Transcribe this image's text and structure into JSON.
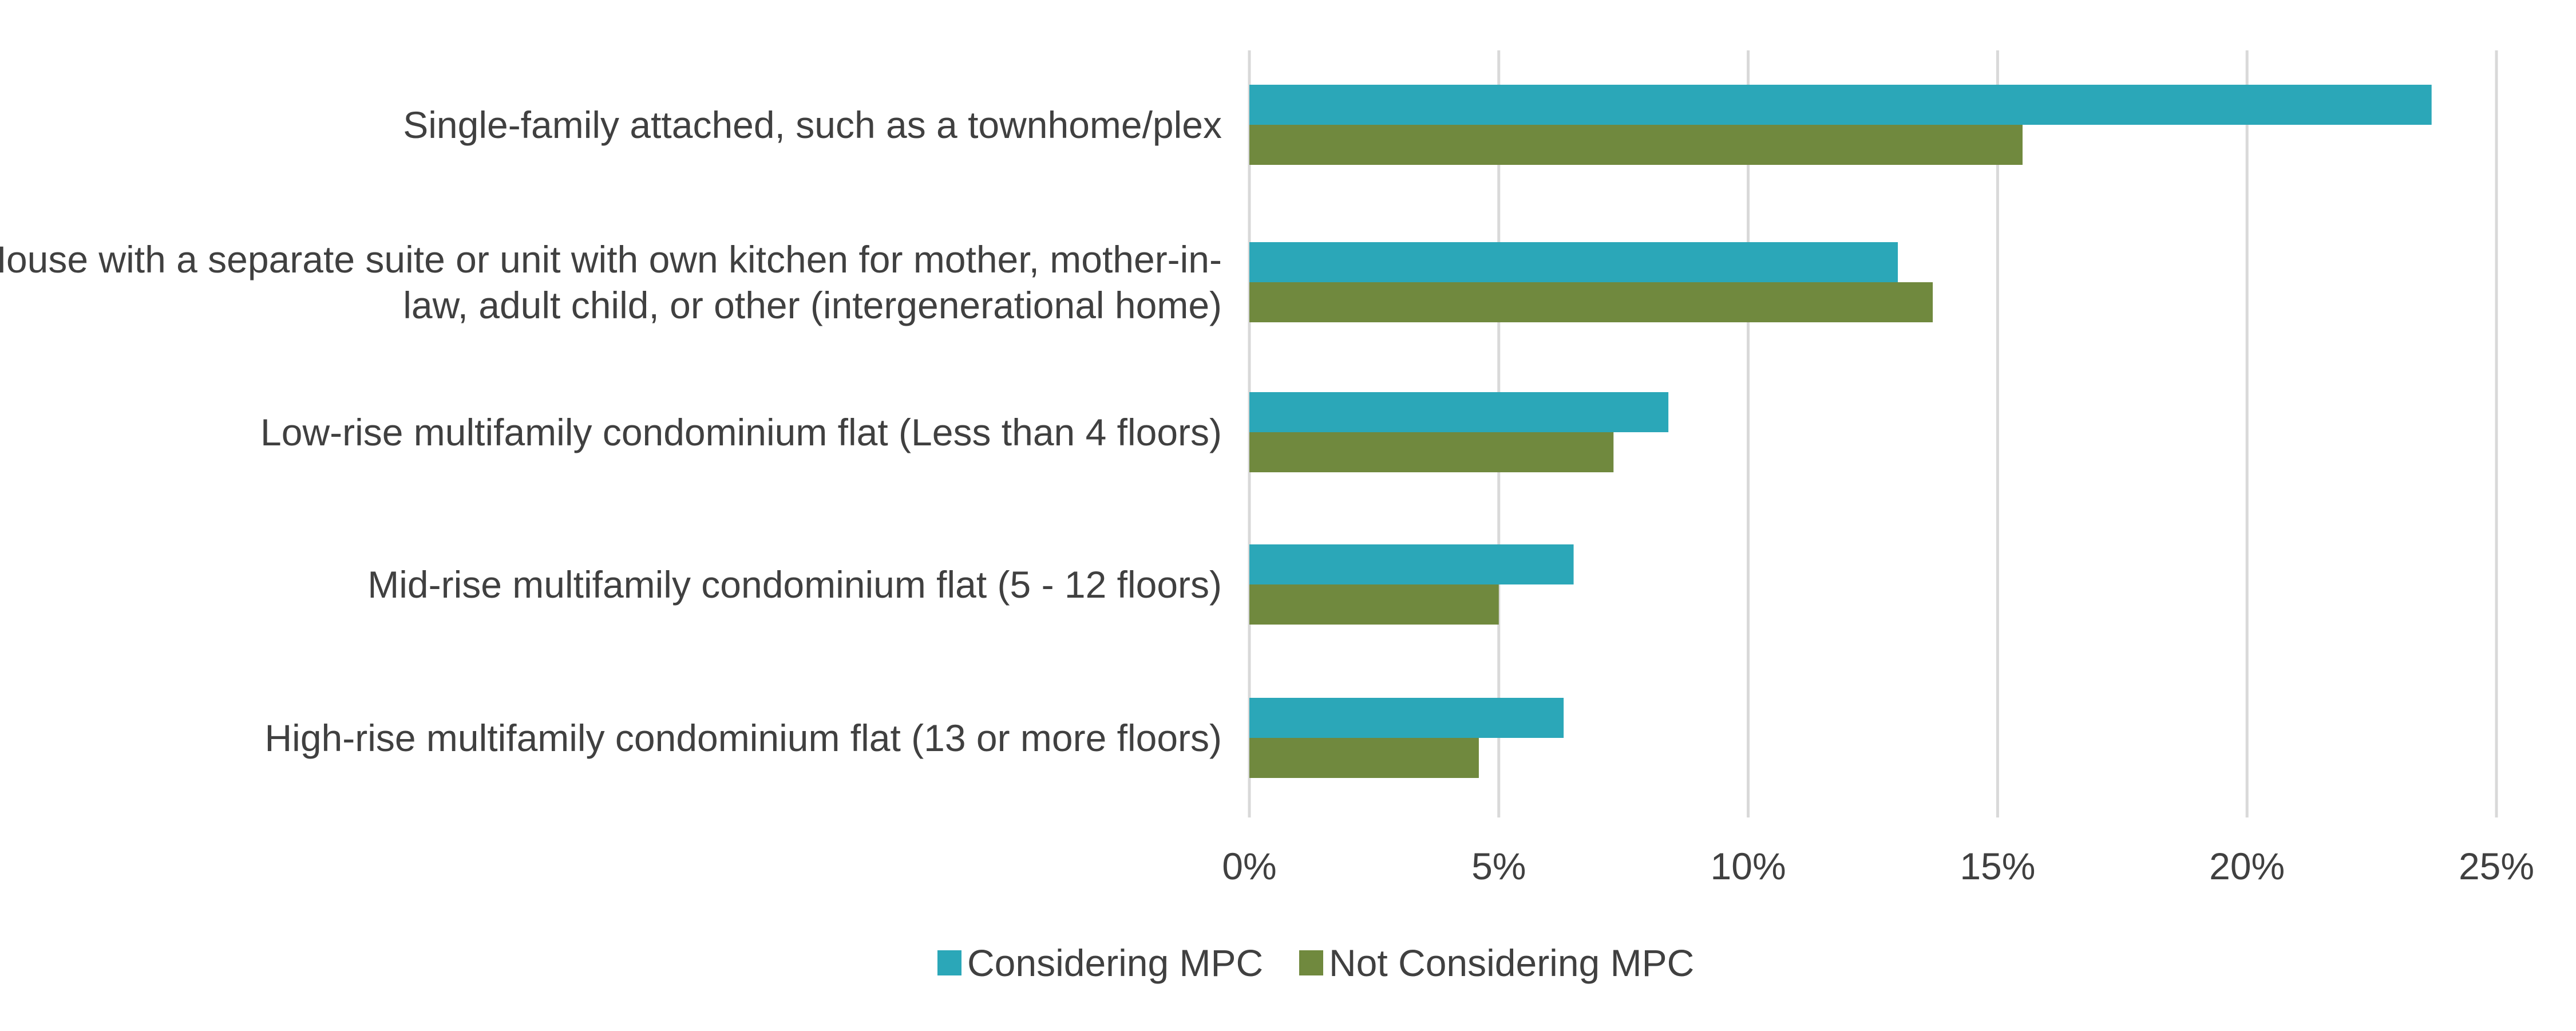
{
  "chart_data": {
    "type": "bar",
    "orientation": "horizontal",
    "categories": [
      [
        "Single-family attached, such as a townhome/plex"
      ],
      [
        "House with a separate suite or unit with own kitchen for mother, mother-in-",
        "law, adult child, or other (intergenerational home)"
      ],
      [
        "Low-rise multifamily condominium flat (Less than 4 floors)"
      ],
      [
        "Mid-rise multifamily condominium flat (5 - 12 floors)"
      ],
      [
        "High-rise multifamily condominium flat (13 or more floors)"
      ]
    ],
    "series": [
      {
        "name": "Considering MPC",
        "color": "#2ba7b8",
        "values": [
          23.7,
          13.0,
          8.4,
          6.5,
          6.3
        ]
      },
      {
        "name": "Not Considering MPC",
        "color": "#70893e",
        "values": [
          15.5,
          13.7,
          7.3,
          5.0,
          4.6
        ]
      }
    ],
    "xlim": [
      0,
      25
    ],
    "xticks": [
      "0%",
      "5%",
      "10%",
      "15%",
      "20%",
      "25%"
    ],
    "xtick_values": [
      0,
      5,
      10,
      15,
      20,
      25
    ],
    "grid": true,
    "grid_color": "#d9d9d9",
    "legend_position": "bottom",
    "title": "",
    "xlabel": "",
    "ylabel": ""
  }
}
